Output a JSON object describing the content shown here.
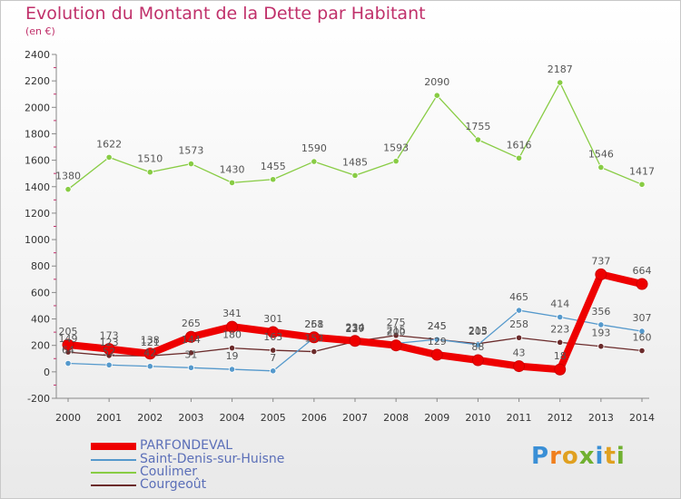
{
  "header": {
    "title": "Evolution du Montant de la Dette par Habitant",
    "subtitle": "(en €)"
  },
  "logo": {
    "text": "Proxiti"
  },
  "colors": {
    "title": "#c0306a",
    "PARFONDEVAL": "#ee0000",
    "Saint-Denis-sur-Huisne": "#5599cc",
    "Coulimer": "#88cc44",
    "Courgeoût": "#6b2b2b"
  },
  "chart_data": {
    "type": "line",
    "title": "Evolution du Montant de la Dette par Habitant",
    "subtitle": "(en €)",
    "x": [
      "2000",
      "2001",
      "2002",
      "2003",
      "2004",
      "2005",
      "2006",
      "2007",
      "2008",
      "2009",
      "2010",
      "2011",
      "2012",
      "2013",
      "2014"
    ],
    "ylim": [
      -200,
      2400
    ],
    "yticks": [
      -200,
      0,
      200,
      400,
      600,
      800,
      1000,
      1200,
      1400,
      1600,
      1800,
      2000,
      2200,
      2400
    ],
    "grid": false,
    "legend": "bottom-left",
    "series": [
      {
        "name": "PARFONDEVAL",
        "values": [
          205,
          173,
          138,
          265,
          341,
          301,
          261,
          234,
          200,
          129,
          88,
          43,
          18,
          737,
          664
        ]
      },
      {
        "name": "Saint-Denis-sur-Huisne",
        "values": [
          64,
          52,
          42,
          31,
          19,
          7,
          258,
          227,
          215,
          245,
          205,
          465,
          414,
          356,
          307
        ]
      },
      {
        "name": "Coulimer",
        "values": [
          1380,
          1622,
          1510,
          1573,
          1430,
          1455,
          1590,
          1485,
          1593,
          2090,
          1755,
          1616,
          2187,
          1546,
          1417
        ]
      },
      {
        "name": "Courgeoût",
        "values": [
          149,
          123,
          121,
          144,
          180,
          163,
          153,
          230,
          275,
          245,
          213,
          258,
          223,
          193,
          160
        ]
      }
    ]
  }
}
